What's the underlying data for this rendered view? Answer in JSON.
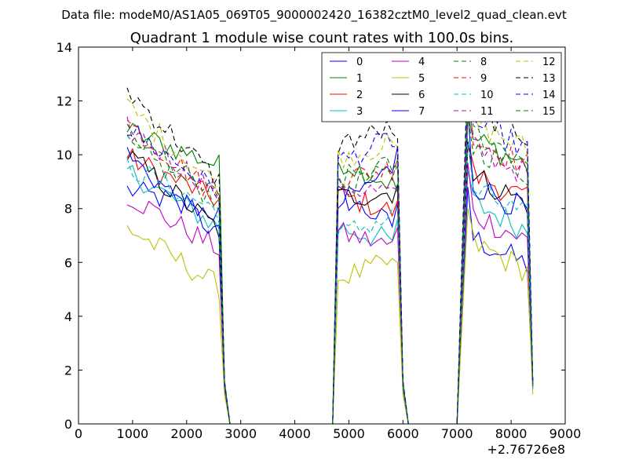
{
  "header": {
    "data_file": "Data file: modeM0/AS1A05_069T05_9000002420_16382cztM0_level2_quad_clean.evt"
  },
  "chart_data": {
    "type": "line",
    "title": "Quadrant 1 module wise count rates with 100.0s bins.",
    "xlabel": "",
    "ylabel": "",
    "x_offset_label": "+2.76726e8",
    "xlim": [
      0,
      9000
    ],
    "ylim": [
      0,
      14
    ],
    "xticks": [
      0,
      1000,
      2000,
      3000,
      4000,
      5000,
      6000,
      7000,
      8000,
      9000
    ],
    "yticks": [
      0,
      2,
      4,
      6,
      8,
      10,
      12,
      14
    ],
    "grid": false,
    "legend_position": "top-right",
    "legend_columns": 4,
    "segments": [
      {
        "t0": 900,
        "t1": 2600,
        "fall": [
          2700,
          2800
        ]
      },
      {
        "t0": 4800,
        "t1": 5900,
        "rise": [
          4700,
          4800
        ],
        "fall": [
          5900,
          6000,
          6100
        ]
      },
      {
        "t0": 7200,
        "t1": 8300,
        "rise": [
          7000,
          7200
        ],
        "fall": [
          8300,
          8400
        ]
      }
    ],
    "series": [
      {
        "name": "0",
        "color": "#0000ff",
        "dash": false,
        "levels": [
          8.7,
          7.8,
          8.5,
          7.4,
          6.3
        ],
        "spikes": [
          8.2,
          8.8
        ],
        "end": 1.5
      },
      {
        "name": "1",
        "color": "#008000",
        "dash": false,
        "levels": [
          10.9,
          9.6,
          9.8,
          8.9,
          10.0
        ],
        "spikes": [
          8.6,
          11.5
        ],
        "end": 1.5
      },
      {
        "name": "2",
        "color": "#ff0000",
        "dash": false,
        "levels": [
          9.9,
          8.3,
          8.5,
          7.9,
          8.7
        ],
        "spikes": [
          8.3,
          10.5
        ],
        "end": 1.4
      },
      {
        "name": "3",
        "color": "#00bfbf",
        "dash": false,
        "levels": [
          9.4,
          7.3,
          7.3,
          6.8,
          7.6
        ],
        "spikes": [
          7.6,
          9.4
        ],
        "end": 1.3
      },
      {
        "name": "4",
        "color": "#bf00bf",
        "dash": false,
        "levels": [
          8.5,
          6.5,
          7.1,
          6.6,
          7.2
        ],
        "spikes": [
          7.3,
          9.7
        ],
        "end": 1.3
      },
      {
        "name": "5",
        "color": "#bfbf00",
        "dash": false,
        "levels": [
          7.3,
          5.1,
          5.4,
          6.0,
          6.1
        ],
        "spikes": [
          6.0,
          8.0
        ],
        "end": 1.1
      },
      {
        "name": "6",
        "color": "#000000",
        "dash": false,
        "levels": [
          10.0,
          7.2,
          8.4,
          8.6,
          8.6
        ],
        "spikes": [
          8.9,
          10.5
        ],
        "end": 1.4
      },
      {
        "name": "7",
        "color": "#0000ff",
        "dash": false,
        "levels": [
          10.0,
          7.0,
          8.1,
          9.5,
          8.3
        ],
        "spikes": [
          10.3,
          11.7
        ],
        "end": 1.5
      },
      {
        "name": "8",
        "color": "#008000",
        "dash": true,
        "levels": [
          10.3,
          8.3,
          8.8,
          9.3,
          9.7
        ],
        "spikes": [
          9.6,
          11.5
        ],
        "end": 1.5
      },
      {
        "name": "9",
        "color": "#ff0000",
        "dash": true,
        "levels": [
          11.2,
          8.4,
          9.1,
          9.5,
          10.0
        ],
        "spikes": [
          9.9,
          12.9
        ],
        "end": 1.5
      },
      {
        "name": "10",
        "color": "#00bfbf",
        "dash": true,
        "levels": [
          9.6,
          7.9,
          7.0,
          7.7,
          8.1
        ],
        "spikes": [
          8.0,
          10.6
        ],
        "end": 1.3
      },
      {
        "name": "11",
        "color": "#bf00bf",
        "dash": true,
        "levels": [
          11.0,
          8.6,
          8.8,
          8.6,
          9.7
        ],
        "spikes": [
          8.7,
          11.9
        ],
        "end": 1.4
      },
      {
        "name": "12",
        "color": "#bfbf00",
        "dash": true,
        "levels": [
          11.8,
          8.8,
          9.9,
          10.4,
          10.6
        ],
        "spikes": [
          10.3,
          13.3
        ],
        "end": 1.5
      },
      {
        "name": "13",
        "color": "#000000",
        "dash": true,
        "levels": [
          12.4,
          9.0,
          10.4,
          11.0,
          11.1
        ],
        "spikes": [
          10.6,
          13.8
        ],
        "end": 1.6
      },
      {
        "name": "14",
        "color": "#0000ff",
        "dash": true,
        "levels": [
          11.0,
          8.6,
          9.7,
          10.6,
          10.6
        ],
        "spikes": [
          10.3,
          13.3
        ],
        "end": 1.6
      },
      {
        "name": "15",
        "color": "#008000",
        "dash": true,
        "levels": [
          10.8,
          8.3,
          9.1,
          9.6,
          10.2
        ],
        "spikes": [
          9.8,
          12.4
        ],
        "end": 1.5
      }
    ]
  }
}
